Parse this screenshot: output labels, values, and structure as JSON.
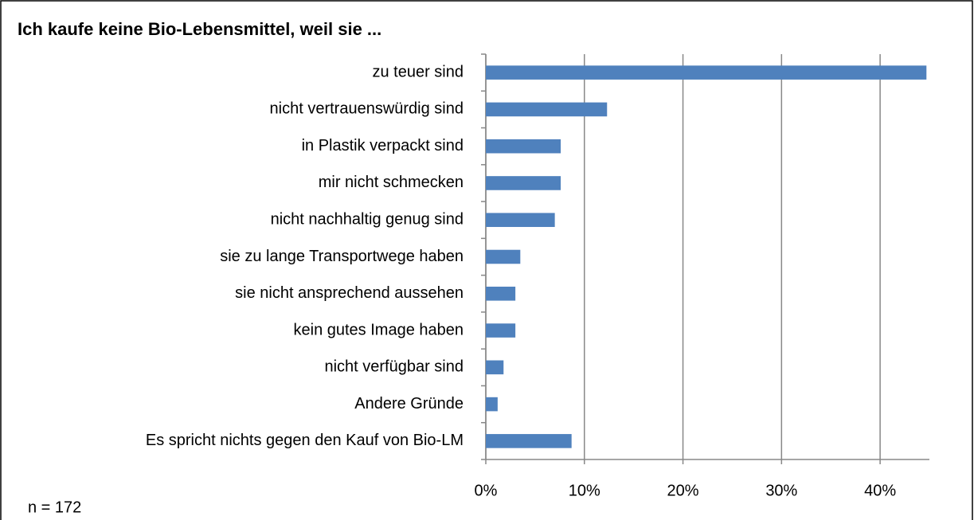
{
  "chart_data": {
    "type": "bar",
    "orientation": "horizontal",
    "title": "Ich kaufe keine Bio-Lebensmittel, weil sie ...",
    "note": "n = 172",
    "categories": [
      "zu teuer sind",
      "nicht vertrauenswürdig sind",
      "in Plastik verpackt sind",
      "mir nicht schmecken",
      "nicht nachhaltig genug sind",
      "sie zu lange Transportwege haben",
      "sie nicht ansprechend aussehen",
      "kein gutes Image haben",
      "nicht verfügbar sind",
      "Andere Gründe",
      "Es spricht nichts gegen den Kauf von Bio-LM"
    ],
    "values": [
      44.7,
      12.3,
      7.6,
      7.6,
      7.0,
      3.5,
      3.0,
      3.0,
      1.8,
      1.2,
      8.7
    ],
    "color": "#4f81bd",
    "xlim": [
      0,
      45
    ],
    "xticks": [
      {
        "value": 0,
        "label": "0%"
      },
      {
        "value": 10,
        "label": "10%"
      },
      {
        "value": 20,
        "label": "20%"
      },
      {
        "value": 30,
        "label": "30%"
      },
      {
        "value": 40,
        "label": "40%"
      }
    ],
    "grid": true
  }
}
